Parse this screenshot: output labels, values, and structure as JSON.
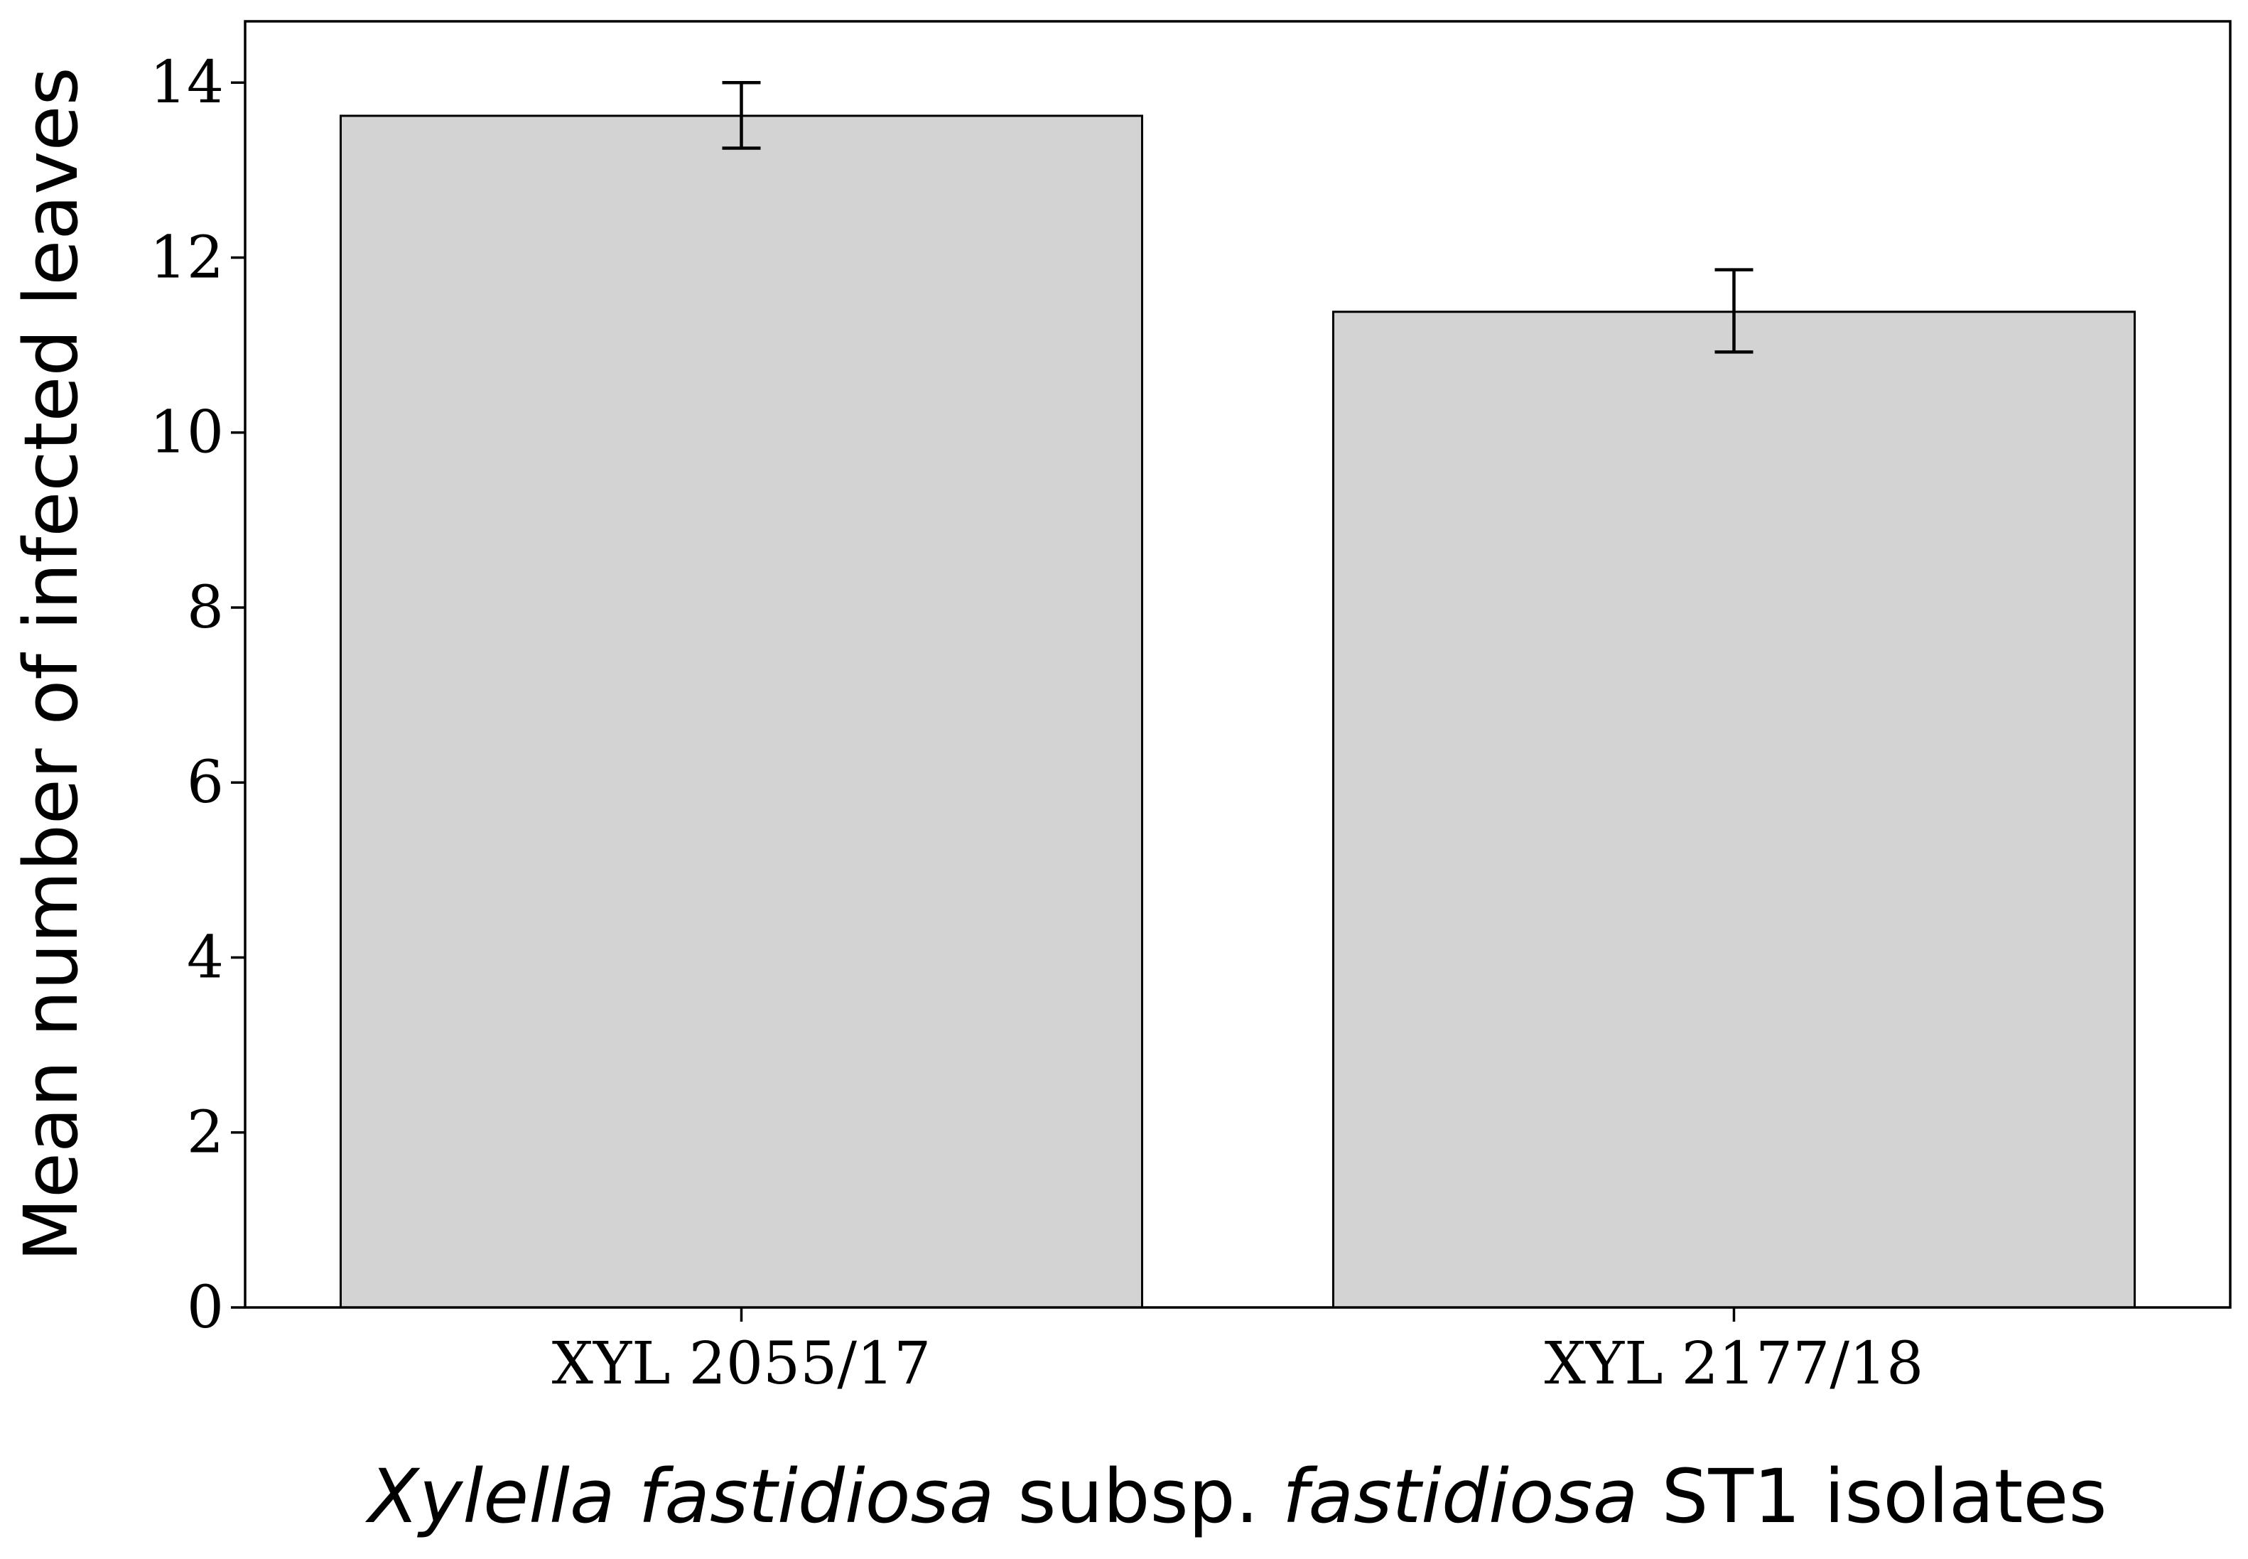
{
  "chart_data": {
    "type": "bar",
    "categories": [
      "XYL 2055/17",
      "XYL 2177/18"
    ],
    "values": [
      13.62,
      11.38
    ],
    "errors": [
      {
        "low": 13.25,
        "high": 14.0
      },
      {
        "low": 10.92,
        "high": 11.86
      }
    ],
    "title": "",
    "ylabel": "Mean number of infected leaves",
    "xlabel_parts": [
      {
        "text": "Xylella fastidiosa",
        "italic": true
      },
      {
        "text": " subsp. ",
        "italic": false
      },
      {
        "text": "fastidiosa",
        "italic": true
      },
      {
        "text": " ST1 isolates",
        "italic": false
      }
    ],
    "ylim": [
      0,
      14.7
    ],
    "yticks": [
      0,
      2,
      4,
      6,
      8,
      10,
      12,
      14
    ],
    "grid": false,
    "colors": {
      "bar_fill": "#d3d3d3",
      "bar_edge": "#000000",
      "error_bar": "#000000",
      "axes": "#000000"
    }
  }
}
